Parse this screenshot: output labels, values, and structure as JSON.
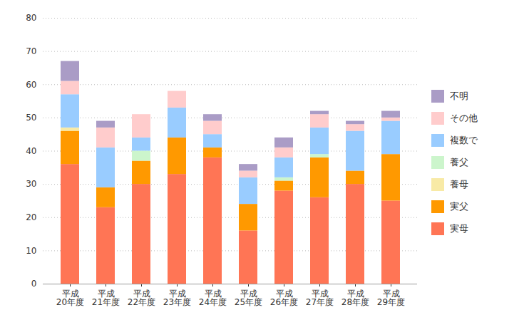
{
  "chart_data": {
    "type": "bar",
    "stacked": true,
    "grid": true,
    "legend": "right",
    "categories": [
      "平成\n20年度",
      "平成\n21年度",
      "平成\n22年度",
      "平成\n23年度",
      "平成\n24年度",
      "平成\n25年度",
      "平成\n26年度",
      "平成\n27年度",
      "平成\n28年度",
      "平成\n29年度"
    ],
    "series": [
      {
        "name": "実母",
        "color": "#ff7555",
        "values": [
          36,
          23,
          30,
          33,
          38,
          16,
          28,
          26,
          30,
          25
        ]
      },
      {
        "name": "実父",
        "color": "#ff9900",
        "values": [
          10,
          6,
          7,
          11,
          3,
          8,
          3,
          12,
          4,
          14
        ]
      },
      {
        "name": "養母",
        "color": "#f8eaa6",
        "values": [
          1,
          0,
          0,
          0,
          0,
          0,
          0,
          0,
          0,
          0
        ]
      },
      {
        "name": "養父",
        "color": "#ccf5cc",
        "values": [
          0,
          0,
          3,
          0,
          0,
          0,
          1,
          1,
          0,
          0
        ]
      },
      {
        "name": "複数で",
        "color": "#99ccff",
        "values": [
          10,
          12,
          4,
          9,
          4,
          8,
          6,
          8,
          12,
          10
        ]
      },
      {
        "name": "その他",
        "color": "#ffcccc",
        "values": [
          4,
          6,
          7,
          5,
          4,
          2,
          3,
          4,
          2,
          1
        ]
      },
      {
        "name": "不明",
        "color": "#aa9cc6",
        "values": [
          6,
          2,
          0,
          0,
          2,
          2,
          3,
          1,
          1,
          2
        ]
      }
    ],
    "ylim": [
      0,
      80
    ],
    "yticks": [
      0,
      10,
      20,
      30,
      40,
      50,
      60,
      70,
      80
    ]
  }
}
